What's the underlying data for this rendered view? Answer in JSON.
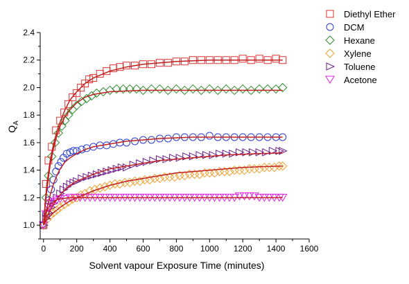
{
  "chart_data": {
    "type": "scatter",
    "xlabel": "Solvent vapour Exposure Time (minutes)",
    "ylabel": "Q",
    "ylabel_subscript": "A",
    "xlim": [
      -20,
      1600
    ],
    "ylim": [
      0.9,
      2.4
    ],
    "xticks": [
      0,
      200,
      400,
      600,
      800,
      1000,
      1200,
      1400,
      1600
    ],
    "yticks": [
      1.0,
      1.2,
      1.4,
      1.6,
      1.8,
      2.0,
      2.2,
      2.4
    ],
    "legend_position": "top-right",
    "grid": false,
    "series": [
      {
        "name": "Diethyl Ether",
        "marker": "square",
        "color": "#e03030",
        "x": [
          0,
          15,
          30,
          50,
          75,
          100,
          125,
          150,
          175,
          200,
          225,
          250,
          275,
          300,
          340,
          380,
          420,
          460,
          500,
          550,
          600,
          650,
          700,
          750,
          800,
          850,
          900,
          950,
          1000,
          1050,
          1100,
          1150,
          1200,
          1250,
          1300,
          1350,
          1400,
          1440
        ],
        "y": [
          1.0,
          1.3,
          1.47,
          1.57,
          1.69,
          1.76,
          1.82,
          1.88,
          1.93,
          1.96,
          2.0,
          2.03,
          2.06,
          2.07,
          2.1,
          2.12,
          2.14,
          2.15,
          2.16,
          2.16,
          2.17,
          2.17,
          2.18,
          2.18,
          2.19,
          2.19,
          2.2,
          2.2,
          2.2,
          2.2,
          2.2,
          2.2,
          2.21,
          2.2,
          2.21,
          2.2,
          2.21,
          2.2
        ],
        "fit_x": [
          0,
          10,
          20,
          40,
          60,
          80,
          100,
          130,
          160,
          200,
          250,
          300,
          400,
          500,
          600,
          700,
          800,
          900,
          1000,
          1100,
          1200,
          1300,
          1440
        ],
        "fit_y": [
          1.0,
          1.17,
          1.3,
          1.47,
          1.59,
          1.68,
          1.75,
          1.84,
          1.91,
          1.97,
          2.03,
          2.07,
          2.12,
          2.15,
          2.17,
          2.18,
          2.19,
          2.195,
          2.2,
          2.2,
          2.2,
          2.2,
          2.2
        ]
      },
      {
        "name": "DCM",
        "marker": "circle",
        "color": "#2a3ad0",
        "x": [
          0,
          15,
          30,
          45,
          60,
          75,
          90,
          105,
          120,
          140,
          160,
          180,
          200,
          230,
          260,
          300,
          340,
          380,
          420,
          460,
          500,
          550,
          600,
          650,
          700,
          750,
          800,
          850,
          900,
          950,
          1000,
          1050,
          1100,
          1150,
          1200,
          1250,
          1300,
          1350,
          1400,
          1440
        ],
        "y": [
          1.0,
          1.08,
          1.18,
          1.26,
          1.33,
          1.39,
          1.43,
          1.46,
          1.49,
          1.52,
          1.53,
          1.54,
          1.54,
          1.55,
          1.56,
          1.57,
          1.58,
          1.58,
          1.59,
          1.6,
          1.6,
          1.61,
          1.62,
          1.62,
          1.63,
          1.63,
          1.64,
          1.64,
          1.64,
          1.64,
          1.65,
          1.64,
          1.64,
          1.64,
          1.64,
          1.64,
          1.64,
          1.64,
          1.64,
          1.64
        ],
        "fit_x": [
          0,
          10,
          20,
          40,
          60,
          80,
          100,
          130,
          160,
          200,
          250,
          300,
          400,
          500,
          600,
          700,
          800,
          900,
          1000,
          1200,
          1440
        ],
        "fit_y": [
          1.0,
          1.06,
          1.12,
          1.22,
          1.3,
          1.36,
          1.41,
          1.46,
          1.49,
          1.52,
          1.55,
          1.57,
          1.59,
          1.61,
          1.62,
          1.63,
          1.635,
          1.64,
          1.64,
          1.64,
          1.64
        ]
      },
      {
        "name": "Hexane",
        "marker": "diamond",
        "color": "#2a8a2a",
        "x": [
          0,
          15,
          30,
          50,
          70,
          90,
          110,
          130,
          150,
          175,
          200,
          230,
          260,
          290,
          320,
          360,
          400,
          440,
          480,
          520,
          560,
          600,
          650,
          700,
          750,
          800,
          850,
          900,
          950,
          1000,
          1050,
          1100,
          1150,
          1200,
          1250,
          1300,
          1350,
          1400,
          1440
        ],
        "y": [
          1.0,
          1.2,
          1.36,
          1.5,
          1.6,
          1.67,
          1.72,
          1.76,
          1.8,
          1.84,
          1.87,
          1.9,
          1.92,
          1.94,
          1.96,
          1.97,
          1.98,
          1.99,
          1.99,
          1.99,
          1.99,
          1.98,
          1.99,
          1.99,
          1.98,
          1.99,
          1.98,
          1.99,
          1.98,
          1.99,
          1.98,
          1.99,
          1.98,
          1.99,
          1.98,
          1.99,
          1.99,
          1.99,
          2.0
        ],
        "fit_x": [
          0,
          10,
          20,
          40,
          60,
          80,
          100,
          130,
          160,
          200,
          250,
          300,
          400,
          500,
          600,
          800,
          1000,
          1200,
          1440
        ],
        "fit_y": [
          1.0,
          1.14,
          1.26,
          1.44,
          1.56,
          1.65,
          1.72,
          1.79,
          1.84,
          1.89,
          1.93,
          1.95,
          1.97,
          1.975,
          1.98,
          1.98,
          1.98,
          1.98,
          1.98
        ]
      },
      {
        "name": "Xylene",
        "marker": "diamond",
        "color": "#f0a030",
        "x": [
          0,
          20,
          40,
          60,
          80,
          100,
          125,
          150,
          175,
          200,
          225,
          250,
          280,
          310,
          340,
          370,
          400,
          430,
          460,
          490,
          520,
          550,
          580,
          610,
          640,
          670,
          700,
          730,
          760,
          790,
          820,
          850,
          880,
          910,
          940,
          970,
          1000,
          1030,
          1060,
          1090,
          1120,
          1150,
          1180,
          1210,
          1240,
          1270,
          1300,
          1330,
          1360,
          1390,
          1420,
          1440
        ],
        "y": [
          1.0,
          1.04,
          1.07,
          1.09,
          1.11,
          1.13,
          1.15,
          1.17,
          1.19,
          1.2,
          1.22,
          1.23,
          1.25,
          1.26,
          1.27,
          1.28,
          1.29,
          1.3,
          1.3,
          1.31,
          1.31,
          1.32,
          1.32,
          1.33,
          1.33,
          1.34,
          1.34,
          1.35,
          1.35,
          1.35,
          1.36,
          1.36,
          1.37,
          1.37,
          1.37,
          1.38,
          1.38,
          1.38,
          1.39,
          1.39,
          1.39,
          1.4,
          1.4,
          1.4,
          1.41,
          1.41,
          1.41,
          1.42,
          1.42,
          1.42,
          1.43,
          1.43
        ],
        "fit_x": [
          0,
          20,
          50,
          100,
          150,
          200,
          300,
          400,
          500,
          600,
          700,
          800,
          900,
          1000,
          1100,
          1200,
          1300,
          1440
        ],
        "fit_y": [
          1.0,
          1.04,
          1.08,
          1.13,
          1.17,
          1.2,
          1.25,
          1.29,
          1.32,
          1.34,
          1.36,
          1.38,
          1.39,
          1.4,
          1.41,
          1.42,
          1.425,
          1.43
        ]
      },
      {
        "name": "Toluene",
        "marker": "triangle-right",
        "color": "#6a1a8a",
        "x": [
          0,
          15,
          30,
          45,
          60,
          80,
          100,
          120,
          140,
          160,
          180,
          200,
          230,
          260,
          290,
          320,
          350,
          380,
          410,
          440,
          470,
          500,
          540,
          580,
          620,
          660,
          700,
          740,
          780,
          820,
          860,
          900,
          940,
          980,
          1020,
          1060,
          1100,
          1140,
          1180,
          1220,
          1260,
          1300,
          1340,
          1380,
          1420,
          1440
        ],
        "y": [
          1.0,
          1.05,
          1.09,
          1.13,
          1.16,
          1.2,
          1.23,
          1.26,
          1.28,
          1.3,
          1.31,
          1.32,
          1.34,
          1.35,
          1.36,
          1.37,
          1.38,
          1.39,
          1.4,
          1.41,
          1.42,
          1.42,
          1.44,
          1.45,
          1.46,
          1.47,
          1.48,
          1.48,
          1.49,
          1.49,
          1.5,
          1.5,
          1.51,
          1.51,
          1.51,
          1.52,
          1.52,
          1.52,
          1.53,
          1.53,
          1.53,
          1.53,
          1.53,
          1.54,
          1.54,
          1.54
        ],
        "fit_x": [
          0,
          20,
          40,
          70,
          100,
          150,
          200,
          300,
          400,
          500,
          600,
          700,
          800,
          900,
          1000,
          1100,
          1200,
          1300,
          1440
        ],
        "fit_y": [
          1.0,
          1.06,
          1.11,
          1.17,
          1.22,
          1.28,
          1.32,
          1.37,
          1.41,
          1.43,
          1.45,
          1.47,
          1.48,
          1.49,
          1.5,
          1.51,
          1.515,
          1.52,
          1.525
        ]
      },
      {
        "name": "Acetone",
        "marker": "triangle-down",
        "color": "#e020e0",
        "x": [
          0,
          15,
          30,
          45,
          60,
          80,
          100,
          130,
          160,
          190,
          220,
          250,
          280,
          310,
          340,
          370,
          400,
          430,
          460,
          490,
          520,
          550,
          580,
          610,
          640,
          670,
          700,
          730,
          760,
          790,
          820,
          850,
          880,
          910,
          940,
          970,
          1000,
          1030,
          1060,
          1090,
          1120,
          1150,
          1180,
          1210,
          1240,
          1270,
          1300,
          1330,
          1360,
          1390,
          1420,
          1440
        ],
        "y": [
          1.0,
          1.08,
          1.13,
          1.16,
          1.17,
          1.18,
          1.19,
          1.19,
          1.2,
          1.2,
          1.2,
          1.2,
          1.2,
          1.2,
          1.2,
          1.2,
          1.2,
          1.2,
          1.2,
          1.2,
          1.2,
          1.2,
          1.2,
          1.2,
          1.2,
          1.2,
          1.2,
          1.2,
          1.2,
          1.2,
          1.2,
          1.2,
          1.2,
          1.2,
          1.2,
          1.2,
          1.2,
          1.2,
          1.2,
          1.2,
          1.2,
          1.2,
          1.21,
          1.21,
          1.21,
          1.21,
          1.2,
          1.2,
          1.2,
          1.2,
          1.2,
          1.2
        ],
        "fit_x": [
          0,
          10,
          20,
          40,
          60,
          80,
          100,
          150,
          200,
          400,
          800,
          1440
        ],
        "fit_y": [
          1.0,
          1.06,
          1.1,
          1.15,
          1.17,
          1.185,
          1.19,
          1.2,
          1.2,
          1.2,
          1.2,
          1.2
        ]
      }
    ]
  }
}
